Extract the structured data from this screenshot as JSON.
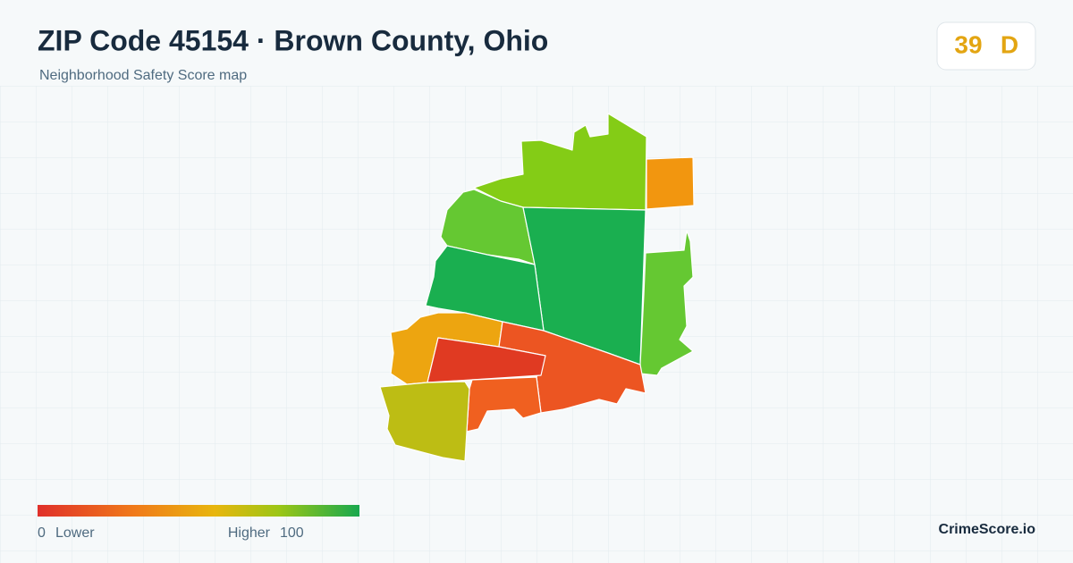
{
  "header": {
    "title": "ZIP Code 45154 · Brown County, Ohio",
    "subtitle": "Neighborhood Safety Score map"
  },
  "score": {
    "value": "39",
    "grade": "D"
  },
  "legend": {
    "min": "0",
    "min_label": "Lower",
    "max_label": "Higher",
    "max": "100"
  },
  "brand": "CrimeScore.io"
}
